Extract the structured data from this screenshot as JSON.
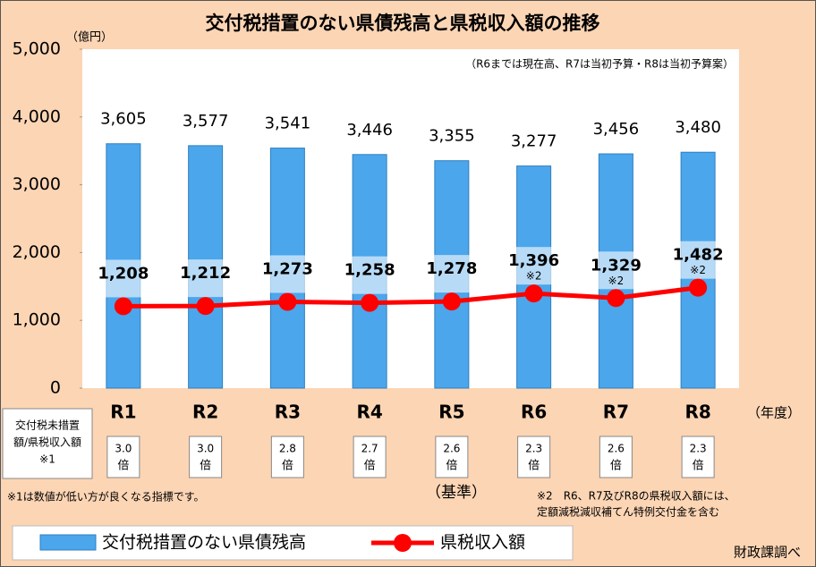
{
  "chart_data": {
    "type": "bar",
    "title": "交付税措置のない県債残高と県税収入額の推移",
    "y_unit": "（億円）",
    "note": "（R6までは現在高、R7は当初予算・R8は当初予算案）",
    "x_unit": "（年度）",
    "categories": [
      "R1",
      "R2",
      "R3",
      "R4",
      "R5",
      "R6",
      "R7",
      "R8"
    ],
    "ylim": [
      0,
      5000
    ],
    "yticks": [
      0,
      {
        "value": 1000,
        "label": "1,000"
      },
      {
        "value": 2000,
        "label": "2,000"
      },
      {
        "value": 3000,
        "label": "3,000"
      },
      {
        "value": 4000,
        "label": "4,000"
      },
      {
        "value": 5000,
        "label": "5,000"
      }
    ],
    "series": [
      {
        "name": "交付税措置のない県債残高",
        "type": "bar",
        "color": "#4ba6ec",
        "values": [
          3605,
          3577,
          3541,
          3446,
          3355,
          3277,
          3456,
          3480
        ],
        "value_labels": [
          "3,605",
          "3,577",
          "3,541",
          "3,446",
          "3,355",
          "3,277",
          "3,456",
          "3,480"
        ]
      },
      {
        "name": "県税収入額",
        "type": "line",
        "color": "#ff0000",
        "values": [
          1208,
          1212,
          1273,
          1258,
          1278,
          1396,
          1329,
          1482
        ],
        "value_labels": [
          "1,208",
          "1,212",
          "1,273",
          "1,258",
          "1,278",
          "1,396",
          "1,329",
          "1,482"
        ],
        "notes": [
          null,
          null,
          null,
          null,
          null,
          "※2",
          "※2",
          "※2"
        ]
      }
    ],
    "ratio_header": [
      "交付税未措置",
      "額/県税収入額",
      "※1"
    ],
    "ratios": [
      "3.0",
      "3.0",
      "2.8",
      "2.7",
      "2.6",
      "2.3",
      "2.6",
      "2.3"
    ],
    "ratio_unit": "倍",
    "baseline_label": "（基準）",
    "footnote1": "※1は数値が低い方が良くなる指標です。",
    "footnote2": [
      "※2　R6、R7及びR8の県税収入額には、",
      "定額減税減収補てん特例交付金を含む"
    ],
    "source": "財政課調べ"
  }
}
